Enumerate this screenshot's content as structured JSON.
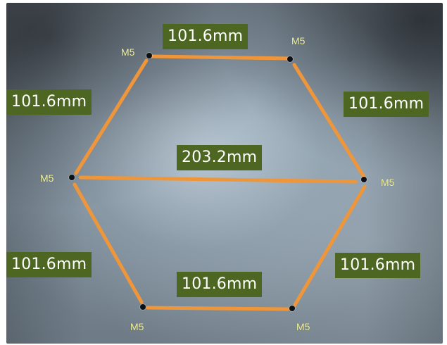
{
  "image": {
    "subject": "hexagonal M5 hole pattern on metal plate with orange dimension lines",
    "colors": {
      "dimension_line": "#f0963a",
      "label_background": "#4d6722",
      "label_text": "#ffffff",
      "screw_label_text": "#f3f39a",
      "hole": "#0e1114",
      "plate": "#7f8e9a"
    }
  },
  "dimensions": {
    "top": "101.6mm",
    "upper_left": "101.6mm",
    "upper_right": "101.6mm",
    "center": "203.2mm",
    "lower_left": "101.6mm",
    "lower_right": "101.6mm",
    "bottom": "101.6mm"
  },
  "holes": {
    "top_left": "M5",
    "top_right": "M5",
    "left": "M5",
    "right": "M5",
    "bottom_left": "M5",
    "bottom_right": "M5"
  }
}
